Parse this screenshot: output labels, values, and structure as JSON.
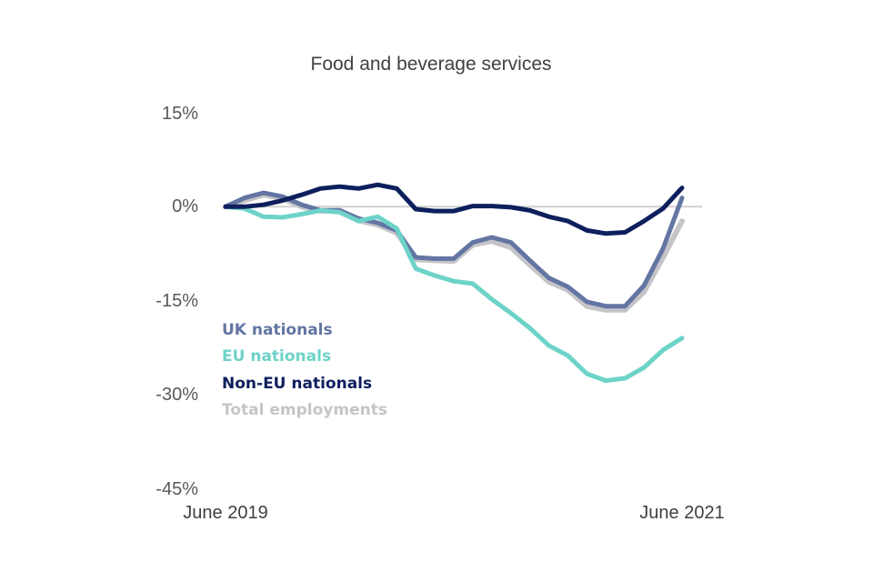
{
  "chart_data": {
    "type": "line",
    "title": "Food and beverage services",
    "xlabel": "",
    "ylabel": "",
    "x_tick_labels": [
      "June 2019",
      "June 2021"
    ],
    "y_tick_labels": [
      "15%",
      "0%",
      "-15%",
      "-30%",
      "-45%"
    ],
    "y_ticks": [
      15,
      0,
      -15,
      -30,
      -45
    ],
    "ylim": [
      -45,
      15
    ],
    "x_count": 25,
    "x": [
      "Jun 2019",
      "Jul 2019",
      "Aug 2019",
      "Sep 2019",
      "Oct 2019",
      "Nov 2019",
      "Dec 2019",
      "Jan 2020",
      "Feb 2020",
      "Mar 2020",
      "Apr 2020",
      "May 2020",
      "Jun 2020",
      "Jul 2020",
      "Aug 2020",
      "Sep 2020",
      "Oct 2020",
      "Nov 2020",
      "Dec 2020",
      "Jan 2021",
      "Feb 2021",
      "Mar 2021",
      "Apr 2021",
      "May 2021",
      "Jun 2021"
    ],
    "zero_line": true,
    "grid": false,
    "legend_position": "lower-left",
    "series": [
      {
        "name": "Total employments",
        "color": "#c5c5c8",
        "values": [
          0,
          1.0,
          1.9,
          1.3,
          0,
          -0.7,
          -0.6,
          -2.2,
          -2.9,
          -4.2,
          -8.4,
          -8.6,
          -8.7,
          -6.1,
          -5.5,
          -6.5,
          -9.3,
          -12.0,
          -13.3,
          -15.9,
          -16.5,
          -16.5,
          -13.6,
          -8.1,
          -2.3
        ]
      },
      {
        "name": "UK nationals",
        "color": "#6375a3",
        "values": [
          0,
          1.4,
          2.2,
          1.6,
          0.3,
          -0.6,
          -0.6,
          -1.9,
          -2.6,
          -3.8,
          -8.1,
          -8.3,
          -8.3,
          -5.7,
          -4.9,
          -5.7,
          -8.6,
          -11.4,
          -12.8,
          -15.2,
          -15.9,
          -15.9,
          -12.6,
          -6.7,
          1.4
        ]
      },
      {
        "name": "EU nationals",
        "color": "#6dd3c8",
        "values": [
          0,
          -0.3,
          -1.6,
          -1.7,
          -1.2,
          -0.6,
          -0.9,
          -2.3,
          -1.6,
          -3.5,
          -9.9,
          -11.0,
          -11.9,
          -12.3,
          -14.8,
          -17.0,
          -19.4,
          -22.2,
          -23.8,
          -26.7,
          -27.8,
          -27.4,
          -25.7,
          -22.9,
          -21.0
        ]
      },
      {
        "name": "Non-EU nationals",
        "color": "#0d1f5c",
        "values": [
          0,
          0,
          0.3,
          1.0,
          1.9,
          2.9,
          3.2,
          2.9,
          3.5,
          2.9,
          -0.4,
          -0.7,
          -0.7,
          0.1,
          0.1,
          -0.1,
          -0.6,
          -1.6,
          -2.3,
          -3.8,
          -4.3,
          -4.1,
          -2.3,
          -0.3,
          3.0
        ]
      }
    ],
    "legend": [
      {
        "label": "UK nationals",
        "color": "#6375a3"
      },
      {
        "label": "EU nationals",
        "color": "#6dd3c8"
      },
      {
        "label": "Non-EU nationals",
        "color": "#0d1f5c"
      },
      {
        "label": "Total employments",
        "color": "#c5c5c8"
      }
    ]
  }
}
